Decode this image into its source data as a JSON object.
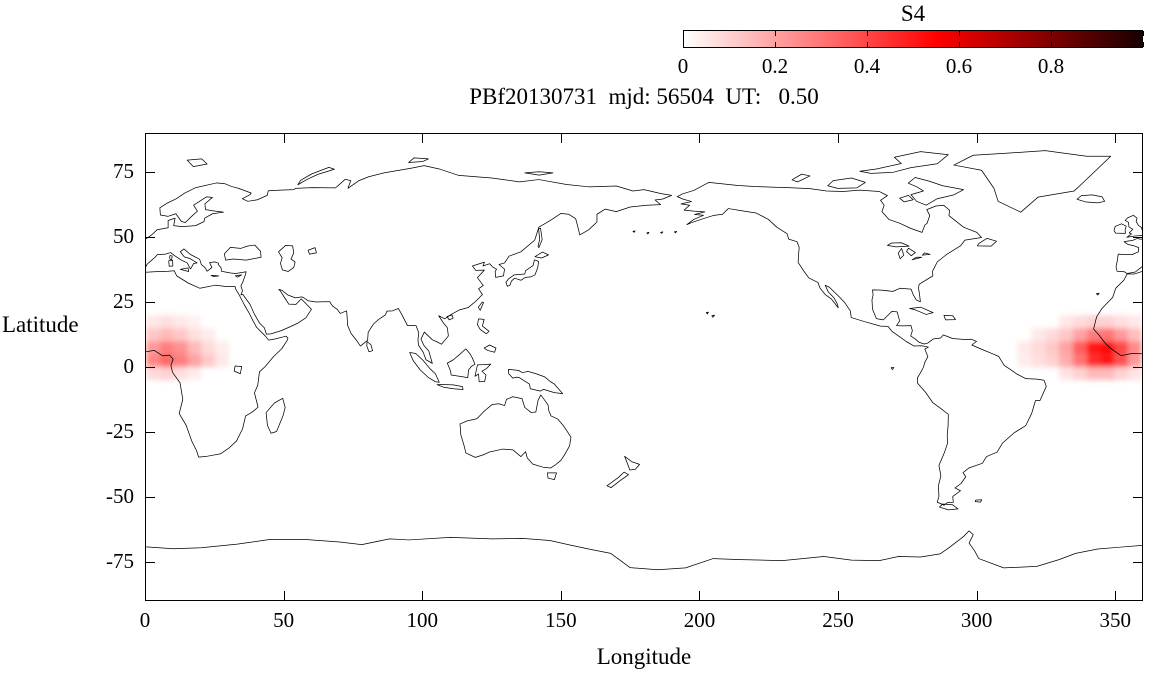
{
  "figure": {
    "title": "PBf20130731  mjd: 56504  UT:   0.50",
    "xlabel": "Longitude",
    "ylabel": "Latitude",
    "colorbar_label": "S4"
  },
  "chart_data": {
    "type": "heatmap",
    "title": "PBf20130731  mjd: 56504  UT:   0.50",
    "xlabel": "Longitude",
    "ylabel": "Latitude",
    "xlim": [
      0,
      360
    ],
    "ylim": [
      -90,
      90
    ],
    "x_ticks": [
      0,
      50,
      100,
      150,
      200,
      250,
      300,
      350
    ],
    "y_ticks": [
      75,
      50,
      25,
      0,
      -25,
      -50,
      -75
    ],
    "grid": false,
    "basemap": "world-coastlines-equirectangular",
    "colorbar": {
      "label": "S4",
      "min": 0,
      "max": 1,
      "tick_values": [
        0,
        0.2,
        0.4,
        0.6,
        0.8
      ],
      "tick_labels": [
        "0",
        "0.2",
        "0.4",
        "0.6",
        "0.8"
      ],
      "color_low": "#ffffff",
      "color_mid": "#ff0000",
      "color_high": "#190000",
      "position": "top-right-horizontal"
    },
    "cell_size_deg": 5,
    "cells": [
      [
        0,
        15,
        0.05
      ],
      [
        5,
        15,
        0.07
      ],
      [
        10,
        15,
        0.05
      ],
      [
        15,
        15,
        0.03
      ],
      [
        0,
        10,
        0.12
      ],
      [
        5,
        10,
        0.15
      ],
      [
        10,
        10,
        0.12
      ],
      [
        15,
        10,
        0.07
      ],
      [
        20,
        10,
        0.04
      ],
      [
        0,
        5,
        0.22
      ],
      [
        5,
        5,
        0.28
      ],
      [
        10,
        5,
        0.24
      ],
      [
        15,
        5,
        0.15
      ],
      [
        20,
        5,
        0.08
      ],
      [
        25,
        5,
        0.04
      ],
      [
        0,
        0,
        0.26
      ],
      [
        5,
        0,
        0.32
      ],
      [
        10,
        0,
        0.28
      ],
      [
        15,
        0,
        0.2
      ],
      [
        20,
        0,
        0.12
      ],
      [
        25,
        0,
        0.05
      ],
      [
        0,
        -5,
        0.08
      ],
      [
        5,
        -5,
        0.1
      ],
      [
        10,
        -5,
        0.07
      ],
      [
        15,
        -5,
        0.04
      ],
      [
        330,
        15,
        0.05
      ],
      [
        335,
        15,
        0.08
      ],
      [
        340,
        15,
        0.1
      ],
      [
        345,
        15,
        0.1
      ],
      [
        350,
        15,
        0.07
      ],
      [
        355,
        15,
        0.05
      ],
      [
        320,
        10,
        0.05
      ],
      [
        325,
        10,
        0.08
      ],
      [
        330,
        10,
        0.12
      ],
      [
        335,
        10,
        0.2
      ],
      [
        340,
        10,
        0.28
      ],
      [
        345,
        10,
        0.3
      ],
      [
        350,
        10,
        0.22
      ],
      [
        355,
        10,
        0.14
      ],
      [
        315,
        5,
        0.05
      ],
      [
        320,
        5,
        0.08
      ],
      [
        325,
        5,
        0.12
      ],
      [
        330,
        5,
        0.2
      ],
      [
        335,
        5,
        0.35
      ],
      [
        340,
        5,
        0.5
      ],
      [
        345,
        5,
        0.52
      ],
      [
        350,
        5,
        0.4
      ],
      [
        355,
        5,
        0.25
      ],
      [
        315,
        0,
        0.04
      ],
      [
        320,
        0,
        0.07
      ],
      [
        325,
        0,
        0.1
      ],
      [
        330,
        0,
        0.18
      ],
      [
        335,
        0,
        0.3
      ],
      [
        340,
        0,
        0.45
      ],
      [
        345,
        0,
        0.5
      ],
      [
        350,
        0,
        0.38
      ],
      [
        355,
        0,
        0.22
      ],
      [
        330,
        -5,
        0.06
      ],
      [
        335,
        -5,
        0.1
      ],
      [
        340,
        -5,
        0.15
      ],
      [
        345,
        -5,
        0.15
      ],
      [
        350,
        -5,
        0.1
      ],
      [
        355,
        -5,
        0.06
      ]
    ]
  }
}
